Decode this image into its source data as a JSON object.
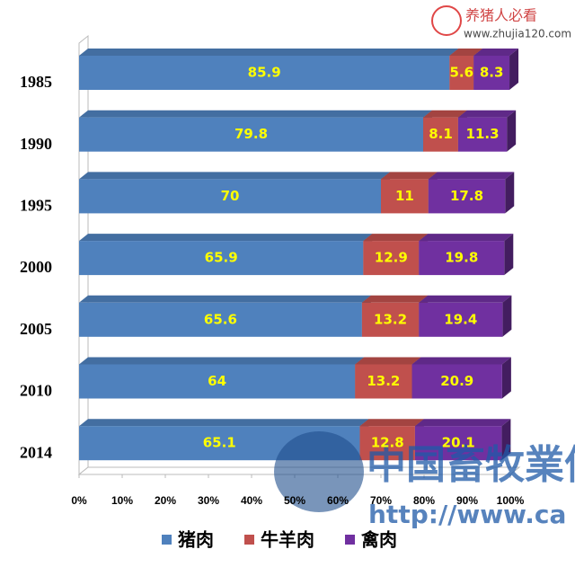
{
  "chart_data": {
    "type": "stacked-bar-3d",
    "categories": [
      "1985",
      "1990",
      "1995",
      "2000",
      "2005",
      "2010",
      "2014"
    ],
    "series": [
      {
        "name": "猪肉",
        "color": "#4f81bd",
        "values": [
          85.9,
          79.8,
          70,
          65.9,
          65.6,
          64,
          65.1
        ]
      },
      {
        "name": "牛羊肉",
        "color": "#c0504d",
        "values": [
          5.6,
          8.1,
          11,
          12.9,
          13.2,
          13.2,
          12.8
        ]
      },
      {
        "name": "禽肉",
        "color": "#7030a0",
        "values": [
          8.3,
          11.3,
          17.8,
          19.8,
          19.4,
          20.9,
          20.1
        ]
      }
    ],
    "xlim": [
      0,
      100
    ],
    "xticks": [
      {
        "value": 0,
        "label": "0%"
      },
      {
        "value": 10,
        "label": "10%"
      },
      {
        "value": 20,
        "label": "20%"
      },
      {
        "value": 30,
        "label": "30%"
      },
      {
        "value": 40,
        "label": "40%"
      },
      {
        "value": 50,
        "label": "50%"
      },
      {
        "value": 60,
        "label": "60%"
      },
      {
        "value": 70,
        "label": "70%"
      },
      {
        "value": 80,
        "label": "80%"
      },
      {
        "value": 90,
        "label": "90%"
      },
      {
        "value": 100,
        "label": "100%"
      }
    ],
    "legend": "bottom",
    "watermarks": [
      "养猪人必看",
      "www.zhujia120.com",
      "中国畜牧業信",
      "http://www.ca"
    ]
  }
}
